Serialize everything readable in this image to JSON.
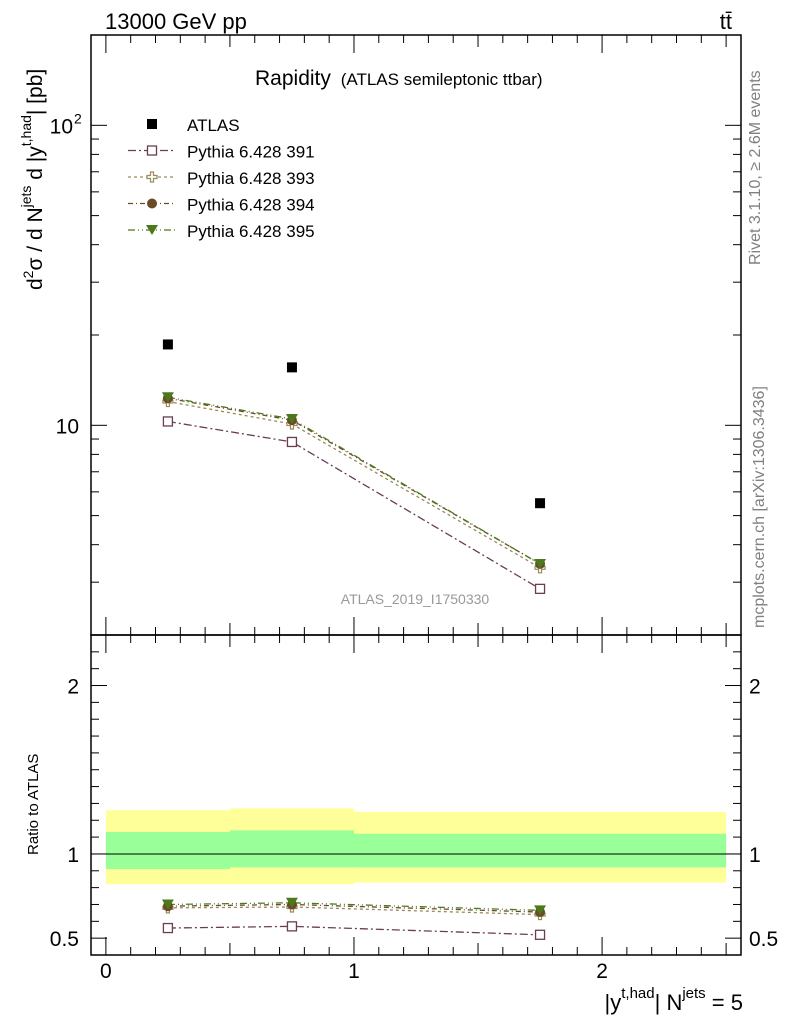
{
  "header": {
    "left": "13000 GeV pp",
    "right": "tt̄"
  },
  "side_labels": {
    "rivet": "Rivet 3.1.10, ≥ 2.6M events",
    "mcplots": "mcplots.cern.ch [arXiv:1306.3436]"
  },
  "chart_data": {
    "type": "scatter",
    "title": "Rapidity",
    "subtitle": "(ATLAS semileptonic ttbar)",
    "watermark": "ATLAS_2019_I1750330",
    "x_axis": {
      "label": "|y^{t,had}| N^{jets} = 5",
      "label_main": "|y",
      "label_sup": "t,had",
      "label_mid": "| N",
      "label_sup2": "jets",
      "label_end": " = 5",
      "range": [
        -0.06,
        2.56
      ],
      "ticks": [
        0,
        1,
        2
      ],
      "tick_labels": [
        "0",
        "1",
        "2"
      ]
    },
    "top_panel": {
      "ylabel": "d²σ / d N^{jets} d |y^{t,had}| [pb]",
      "ylabel_parts": [
        "d",
        "2",
        "σ / d N",
        "jets",
        " d |y",
        "t,had",
        "| [pb]"
      ],
      "scale": "log",
      "ylim": [
        2.0,
        200
      ],
      "tick_labels": [
        "10",
        "10",
        "2"
      ],
      "major_ticks": [
        10,
        100
      ]
    },
    "bottom_panel": {
      "ylabel": "Ratio to ATLAS",
      "ylim": [
        0.4,
        2.3
      ],
      "ticks": [
        0.5,
        1,
        2
      ],
      "tick_labels": [
        "0.5",
        "1",
        "2"
      ]
    },
    "x": [
      0.25,
      0.75,
      1.75
    ],
    "x_edges": [
      0.0,
      0.5,
      1.0,
      2.5
    ],
    "series": [
      {
        "name": "ATLAS",
        "marker": "filled-square",
        "color": "#000000",
        "values": [
          18.6,
          15.6,
          5.5
        ],
        "ratio": [
          1,
          1,
          1
        ]
      },
      {
        "name": "Pythia 6.428 391",
        "marker": "open-square",
        "color": "#6b3d52",
        "dash": "8,3,2,3",
        "values": [
          10.3,
          8.8,
          2.85
        ],
        "ratio": [
          0.56,
          0.57,
          0.52
        ]
      },
      {
        "name": "Pythia 6.428 393",
        "marker": "open-cross",
        "color": "#9a8a5a",
        "dash": "3,3",
        "values": [
          12.0,
          10.1,
          3.35
        ],
        "ratio": [
          0.68,
          0.685,
          0.64
        ]
      },
      {
        "name": "Pythia 6.428 394",
        "marker": "filled-circle",
        "color": "#6b4a2a",
        "dash": "5,3,1,3",
        "values": [
          12.3,
          10.4,
          3.45
        ],
        "ratio": [
          0.69,
          0.7,
          0.655
        ]
      },
      {
        "name": "Pythia 6.428 395",
        "marker": "filled-triangle",
        "color": "#4a7a1a",
        "dash": "7,3,1,3,1,3",
        "values": [
          12.4,
          10.5,
          3.45
        ],
        "ratio": [
          0.7,
          0.71,
          0.665
        ]
      }
    ],
    "bands": {
      "outer_color": "#ffff99",
      "inner_color": "#99ff99",
      "outer": [
        [
          0.82,
          1.26
        ],
        [
          0.82,
          1.27
        ],
        [
          0.83,
          1.25
        ]
      ],
      "inner": [
        [
          0.91,
          1.13
        ],
        [
          0.92,
          1.14
        ],
        [
          0.92,
          1.12
        ]
      ]
    }
  }
}
